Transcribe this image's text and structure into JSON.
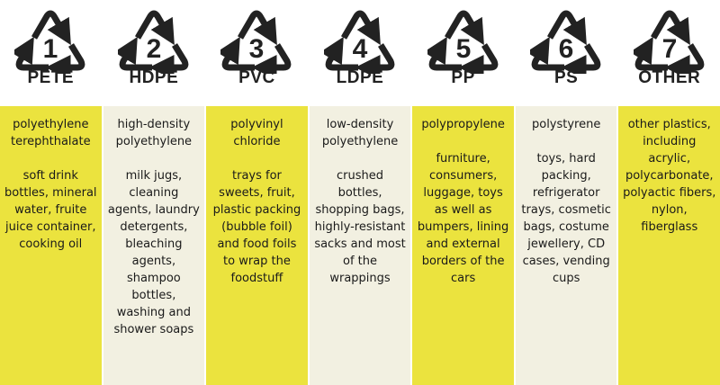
{
  "colors": {
    "yellow": "#ebe33e",
    "cream": "#f2f0e1",
    "icon": "#222222"
  },
  "icon": "recycling-triangle-icon",
  "plastics": [
    {
      "number": "1",
      "code": "PETE",
      "name": "polyethylene terephthalate",
      "uses": "soft drink bottles, mineral water, fruite juice container, cooking oil"
    },
    {
      "number": "2",
      "code": "HDPE",
      "name": "high-density polyethylene",
      "uses": "milk jugs, cleaning agents, laundry detergents, bleaching agents, shampoo bottles, washing and shower soaps"
    },
    {
      "number": "3",
      "code": "PVC",
      "name": "polyvinyl chloride",
      "uses": "trays for sweets, fruit, plastic packing (bubble foil) and food foils to wrap the foodstuff"
    },
    {
      "number": "4",
      "code": "LDPE",
      "name": "low-density polyethylene",
      "uses": "crushed bottles, shopping bags, highly-resistant sacks and most of the wrappings"
    },
    {
      "number": "5",
      "code": "PP",
      "name": "polypropylene",
      "uses": "furniture, consumers, luggage, toys as well as bumpers, lining and external borders of the cars"
    },
    {
      "number": "6",
      "code": "PS",
      "name": "polystyrene",
      "uses": "toys, hard packing, refrigerator trays, cosmetic bags, costume jewellery, CD cases, vending cups"
    },
    {
      "number": "7",
      "code": "OTHER",
      "name": "other plastics, including acrylic, polycarbonate, polyactic fibers, nylon, fiberglass",
      "uses": ""
    }
  ]
}
